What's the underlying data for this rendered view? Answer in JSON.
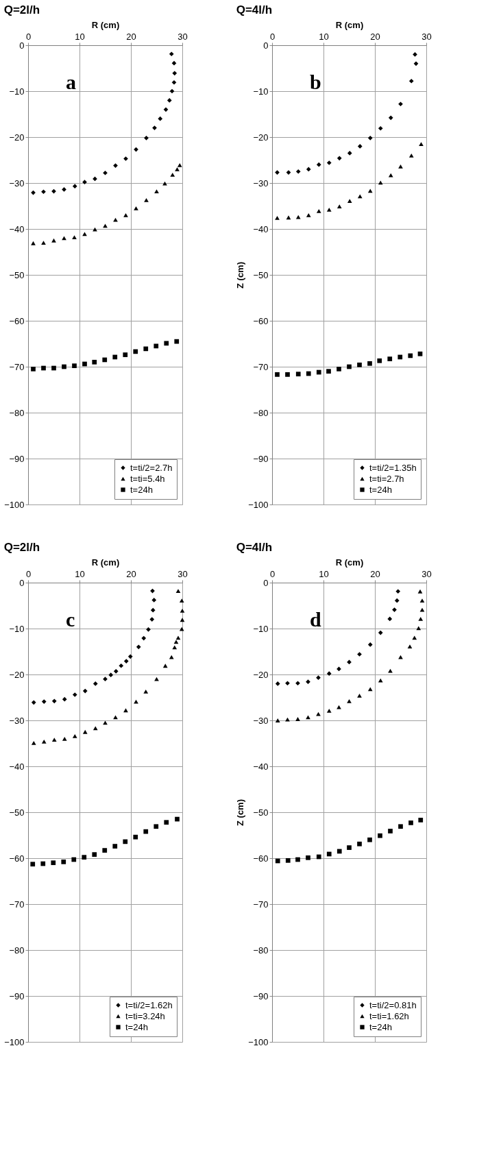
{
  "chart_data": [
    {
      "type": "scatter",
      "title": "Q=2l/h",
      "xlabel": "R (cm)",
      "annotations": [
        "a"
      ],
      "xlim": [
        0,
        30
      ],
      "xticks": [
        0,
        10,
        20,
        30
      ],
      "ylim": [
        -100,
        0
      ],
      "yticks": [
        0,
        -10,
        -20,
        -30,
        -40,
        -50,
        -60,
        -70,
        -80,
        -90,
        -100
      ],
      "grid": true,
      "legend": "bottom right",
      "series": [
        {
          "name": "t=ti/2=2.7h",
          "color": "#000000",
          "marker": "diamond",
          "x": [
            1.0,
            3.0,
            5.0,
            7.0,
            9.1,
            11,
            13,
            15,
            17,
            19,
            21,
            23,
            24.6,
            25.7,
            26.8,
            27.5,
            28.0,
            28.4,
            28.5,
            28.4,
            27.9
          ],
          "values": [
            -32.1,
            -31.9,
            -31.8,
            -31.4,
            -30.7,
            -29.8,
            -29.1,
            -27.8,
            -26.2,
            -24.7,
            -22.7,
            -20.2,
            -18.0,
            -16.0,
            -14.0,
            -12.0,
            -10.0,
            -8.1,
            -6.1,
            -3.9,
            -1.9
          ]
        },
        {
          "name": "t=ti=5.4h",
          "color": "#000000",
          "marker": "triangle",
          "x": [
            1,
            3,
            5,
            7,
            9,
            11,
            13,
            15,
            17,
            19,
            21,
            23,
            25,
            26.6,
            28.1,
            29,
            29.5
          ],
          "values": [
            -43.1,
            -43,
            -42.5,
            -42,
            -41.8,
            -41.1,
            -40.1,
            -39.3,
            -38,
            -37,
            -35.5,
            -33.7,
            -31.8,
            -30.1,
            -28.2,
            -27,
            -26.1
          ]
        },
        {
          "name": "t=24h",
          "color": "#000000",
          "marker": "square",
          "x": [
            1,
            3,
            5,
            7,
            9,
            11,
            12.9,
            14.9,
            16.9,
            18.9,
            20.9,
            22.9,
            24.9,
            26.9,
            28.9
          ],
          "values": [
            -70.5,
            -70.3,
            -70.3,
            -70,
            -69.8,
            -69.4,
            -69,
            -68.5,
            -67.9,
            -67.4,
            -66.7,
            -66.1,
            -65.5,
            -64.9,
            -64.5
          ]
        }
      ]
    },
    {
      "type": "scatter",
      "title": "Q=4l/h",
      "xlabel": "R (cm)",
      "ylabel": "Z (cm)",
      "annotations": [
        "b"
      ],
      "xlim": [
        0,
        30
      ],
      "xticks": [
        0,
        10,
        20,
        30
      ],
      "ylim": [
        -100,
        0
      ],
      "yticks": [
        0,
        -10,
        -20,
        -30,
        -40,
        -50,
        -60,
        -70,
        -80,
        -90,
        -100
      ],
      "grid": true,
      "legend": "bottom right",
      "series": [
        {
          "name": "t=ti/2=1.35h",
          "color": "#000000",
          "marker": "diamond",
          "x": [
            1.0,
            3.2,
            5.1,
            7.1,
            9.1,
            11.1,
            13.1,
            15.1,
            17.1,
            19.1,
            21.1,
            23.1,
            25,
            27.1,
            28,
            27.8
          ],
          "values": [
            -27.7,
            -27.7,
            -27.5,
            -27,
            -26,
            -25.6,
            -24.6,
            -23.5,
            -22,
            -20.2,
            -18.1,
            -15.8,
            -12.8,
            -7.8,
            -4,
            -2
          ]
        },
        {
          "name": "t=ti=2.7h",
          "color": "#000000",
          "marker": "triangle",
          "x": [
            1,
            3.2,
            5.1,
            7.1,
            9.1,
            11.1,
            13.1,
            15.1,
            17.1,
            19.1,
            21.1,
            23.1,
            25,
            27.1,
            29
          ],
          "values": [
            -37.6,
            -37.5,
            -37.4,
            -37,
            -36.1,
            -35.8,
            -35.1,
            -33.9,
            -32.9,
            -31.7,
            -29.9,
            -28.3,
            -26.4,
            -24,
            -21.5
          ]
        },
        {
          "name": "t=24h",
          "color": "#000000",
          "marker": "square",
          "x": [
            1.0,
            3.0,
            5.1,
            7.1,
            9.1,
            11,
            13,
            15,
            17,
            19,
            20.9,
            22.9,
            24.9,
            26.9,
            28.8
          ],
          "values": [
            -71.7,
            -71.7,
            -71.6,
            -71.5,
            -71.2,
            -71,
            -70.5,
            -70,
            -69.6,
            -69.3,
            -68.7,
            -68.3,
            -67.9,
            -67.6,
            -67.2
          ]
        }
      ]
    },
    {
      "type": "scatter",
      "title": "Q=2l/h",
      "xlabel": "R (cm)",
      "annotations": [
        "c"
      ],
      "xlim": [
        0,
        30
      ],
      "xticks": [
        0,
        10,
        20,
        30
      ],
      "ylim": [
        -100,
        0
      ],
      "yticks": [
        0,
        -10,
        -20,
        -30,
        -40,
        -50,
        -60,
        -70,
        -80,
        -90,
        -100
      ],
      "grid": true,
      "legend": "bottom right",
      "series": [
        {
          "name": "t=ti/2=1.62h",
          "color": "#000000",
          "marker": "diamond",
          "x": [
            1.1,
            3.1,
            5.1,
            7.1,
            9.1,
            11.1,
            13.1,
            15,
            16.1,
            17.1,
            18.1,
            19.1,
            19.9,
            21.5,
            22.5,
            23.4,
            24.1,
            24.3,
            24.5,
            24.2
          ],
          "values": [
            -26.1,
            -25.9,
            -25.8,
            -25.4,
            -24.4,
            -23.6,
            -22,
            -21,
            -20.1,
            -19.3,
            -18.1,
            -17.1,
            -16.1,
            -14,
            -12.1,
            -10.2,
            -8,
            -6,
            -3.8,
            -1.8
          ]
        },
        {
          "name": "t=ti=3.24h",
          "color": "#000000",
          "marker": "triangle",
          "x": [
            1.1,
            3.1,
            5.1,
            7.1,
            9.1,
            11.1,
            13.1,
            15,
            17,
            19,
            21,
            22.9,
            25,
            26.7,
            27.9,
            28.5,
            28.8,
            29.2,
            29.9,
            30,
            30,
            29.9,
            29.2
          ],
          "values": [
            -34.9,
            -34.6,
            -34.2,
            -34,
            -33.4,
            -32.5,
            -31.7,
            -30.5,
            -29.3,
            -27.8,
            -25.9,
            -23.7,
            -21,
            -18.1,
            -16.2,
            -14.1,
            -12.9,
            -12,
            -10.1,
            -8.1,
            -6.1,
            -3.9,
            -1.8
          ]
        },
        {
          "name": "t=24h",
          "color": "#000000",
          "marker": "square",
          "x": [
            0.9,
            2.9,
            4.9,
            6.9,
            8.9,
            10.9,
            12.9,
            14.9,
            16.9,
            18.9,
            20.9,
            22.9,
            24.9,
            26.9,
            29.0
          ],
          "values": [
            -61.3,
            -61.2,
            -61,
            -60.8,
            -60.3,
            -59.8,
            -59.2,
            -58.3,
            -57.4,
            -56.4,
            -55.4,
            -54.2,
            -53.1,
            -52.2,
            -51.5
          ]
        }
      ]
    },
    {
      "type": "scatter",
      "title": "Q=4l/h",
      "xlabel": "R (cm)",
      "ylabel": "Z (cm)",
      "annotations": [
        "d"
      ],
      "xlim": [
        0,
        30
      ],
      "xticks": [
        0,
        10,
        20,
        30
      ],
      "ylim": [
        -100,
        0
      ],
      "yticks": [
        0,
        -10,
        -20,
        -30,
        -40,
        -50,
        -60,
        -70,
        -80,
        -90,
        -100
      ],
      "grid": true,
      "legend": "bottom right",
      "series": [
        {
          "name": "t=ti/2=0.81h",
          "color": "#000000",
          "marker": "diamond",
          "x": [
            1.1,
            3,
            5,
            7,
            9,
            11.1,
            13,
            15,
            17,
            19.1,
            21.1,
            22.9,
            23.8,
            24.3,
            24.5
          ],
          "values": [
            -22,
            -21.9,
            -21.9,
            -21.6,
            -20.7,
            -19.8,
            -18.8,
            -17.3,
            -15.6,
            -13.5,
            -10.9,
            -7.9,
            -5.9,
            -3.9,
            -1.9
          ]
        },
        {
          "name": "t=ti=1.62h",
          "color": "#000000",
          "marker": "triangle",
          "x": [
            1.1,
            3,
            5,
            7,
            9,
            11.1,
            13,
            15,
            17,
            19.1,
            21.1,
            23,
            25,
            26.8,
            27.7,
            28.5,
            28.9,
            29.2,
            29.2,
            28.8
          ],
          "values": [
            -30,
            -29.8,
            -29.7,
            -29.3,
            -28.6,
            -27.9,
            -27.1,
            -25.8,
            -24.6,
            -23.2,
            -21.3,
            -19.2,
            -16.2,
            -13.9,
            -12,
            -9.9,
            -7.9,
            -5.9,
            -3.9,
            -1.9
          ]
        },
        {
          "name": "t=24h",
          "color": "#000000",
          "marker": "square",
          "x": [
            1.1,
            3.1,
            5,
            7,
            9.1,
            11.1,
            13.1,
            15,
            17,
            19,
            21,
            23,
            25,
            27,
            28.9
          ],
          "values": [
            -60.6,
            -60.5,
            -60.3,
            -59.9,
            -59.7,
            -59.1,
            -58.5,
            -57.7,
            -56.9,
            -56,
            -55.1,
            -54.1,
            -53.1,
            -52.3,
            -51.7
          ]
        }
      ]
    }
  ]
}
